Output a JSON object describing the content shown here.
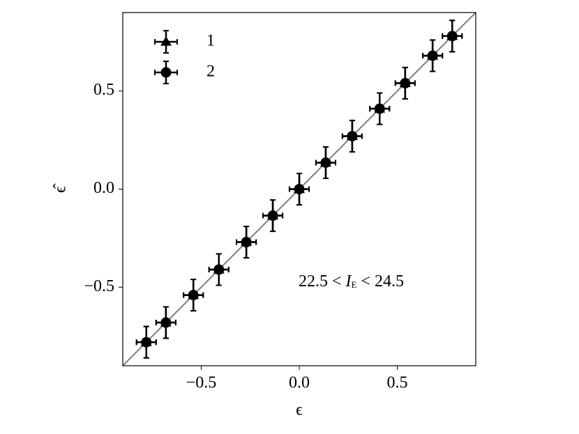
{
  "chart_data": {
    "type": "scatter",
    "x_label": "ϵ",
    "y_label": "ϵ̂",
    "xlim": [
      -0.9,
      0.9
    ],
    "ylim": [
      -0.9,
      0.9
    ],
    "xticks": [
      {
        "value": -0.5,
        "label": "−0.5"
      },
      {
        "value": 0,
        "label": "0.0"
      },
      0.5
    ],
    "yticks": [
      {
        "value": -0.5,
        "label": "−0.5"
      },
      {
        "value": 0,
        "label": "0.0"
      },
      0.5
    ],
    "diagonal": true,
    "diagonal_color": "#808080",
    "legend": "upper left",
    "annotation": {
      "left": "22.5 <",
      "var": "I",
      "sub": "E",
      "right": "< 24.5"
    },
    "series": [
      {
        "name": "1",
        "marker": "triangle",
        "color": "#000000",
        "x": [
          -0.78,
          -0.68,
          -0.54,
          -0.41,
          -0.27,
          -0.135,
          0,
          0.135,
          0.27,
          0.41,
          0.54,
          0.68,
          0.78
        ],
        "values": [
          -0.78,
          -0.68,
          -0.54,
          -0.41,
          -0.27,
          -0.135,
          0,
          0.135,
          0.27,
          0.41,
          0.54,
          0.68,
          0.78
        ],
        "xerr": [
          0.05,
          0.05,
          0.05,
          0.05,
          0.05,
          0.05,
          0.05,
          0.05,
          0.05,
          0.05,
          0.05,
          0.05,
          0.05
        ],
        "yerr": [
          0.08,
          0.08,
          0.08,
          0.08,
          0.08,
          0.08,
          0.08,
          0.08,
          0.08,
          0.08,
          0.08,
          0.08,
          0.08
        ]
      },
      {
        "name": "2",
        "marker": "circle",
        "color": "#000000",
        "x": [
          -0.78,
          -0.68,
          -0.54,
          -0.41,
          -0.27,
          -0.135,
          0,
          0.135,
          0.27,
          0.41,
          0.54,
          0.68,
          0.78
        ],
        "values": [
          -0.78,
          -0.68,
          -0.54,
          -0.41,
          -0.27,
          -0.135,
          0,
          0.135,
          0.27,
          0.41,
          0.54,
          0.68,
          0.78
        ],
        "xerr": [
          0.05,
          0.05,
          0.05,
          0.05,
          0.05,
          0.05,
          0.05,
          0.05,
          0.05,
          0.05,
          0.05,
          0.05,
          0.05
        ],
        "yerr": [
          0.08,
          0.08,
          0.08,
          0.08,
          0.08,
          0.08,
          0.08,
          0.08,
          0.08,
          0.08,
          0.08,
          0.08,
          0.08
        ]
      }
    ]
  }
}
